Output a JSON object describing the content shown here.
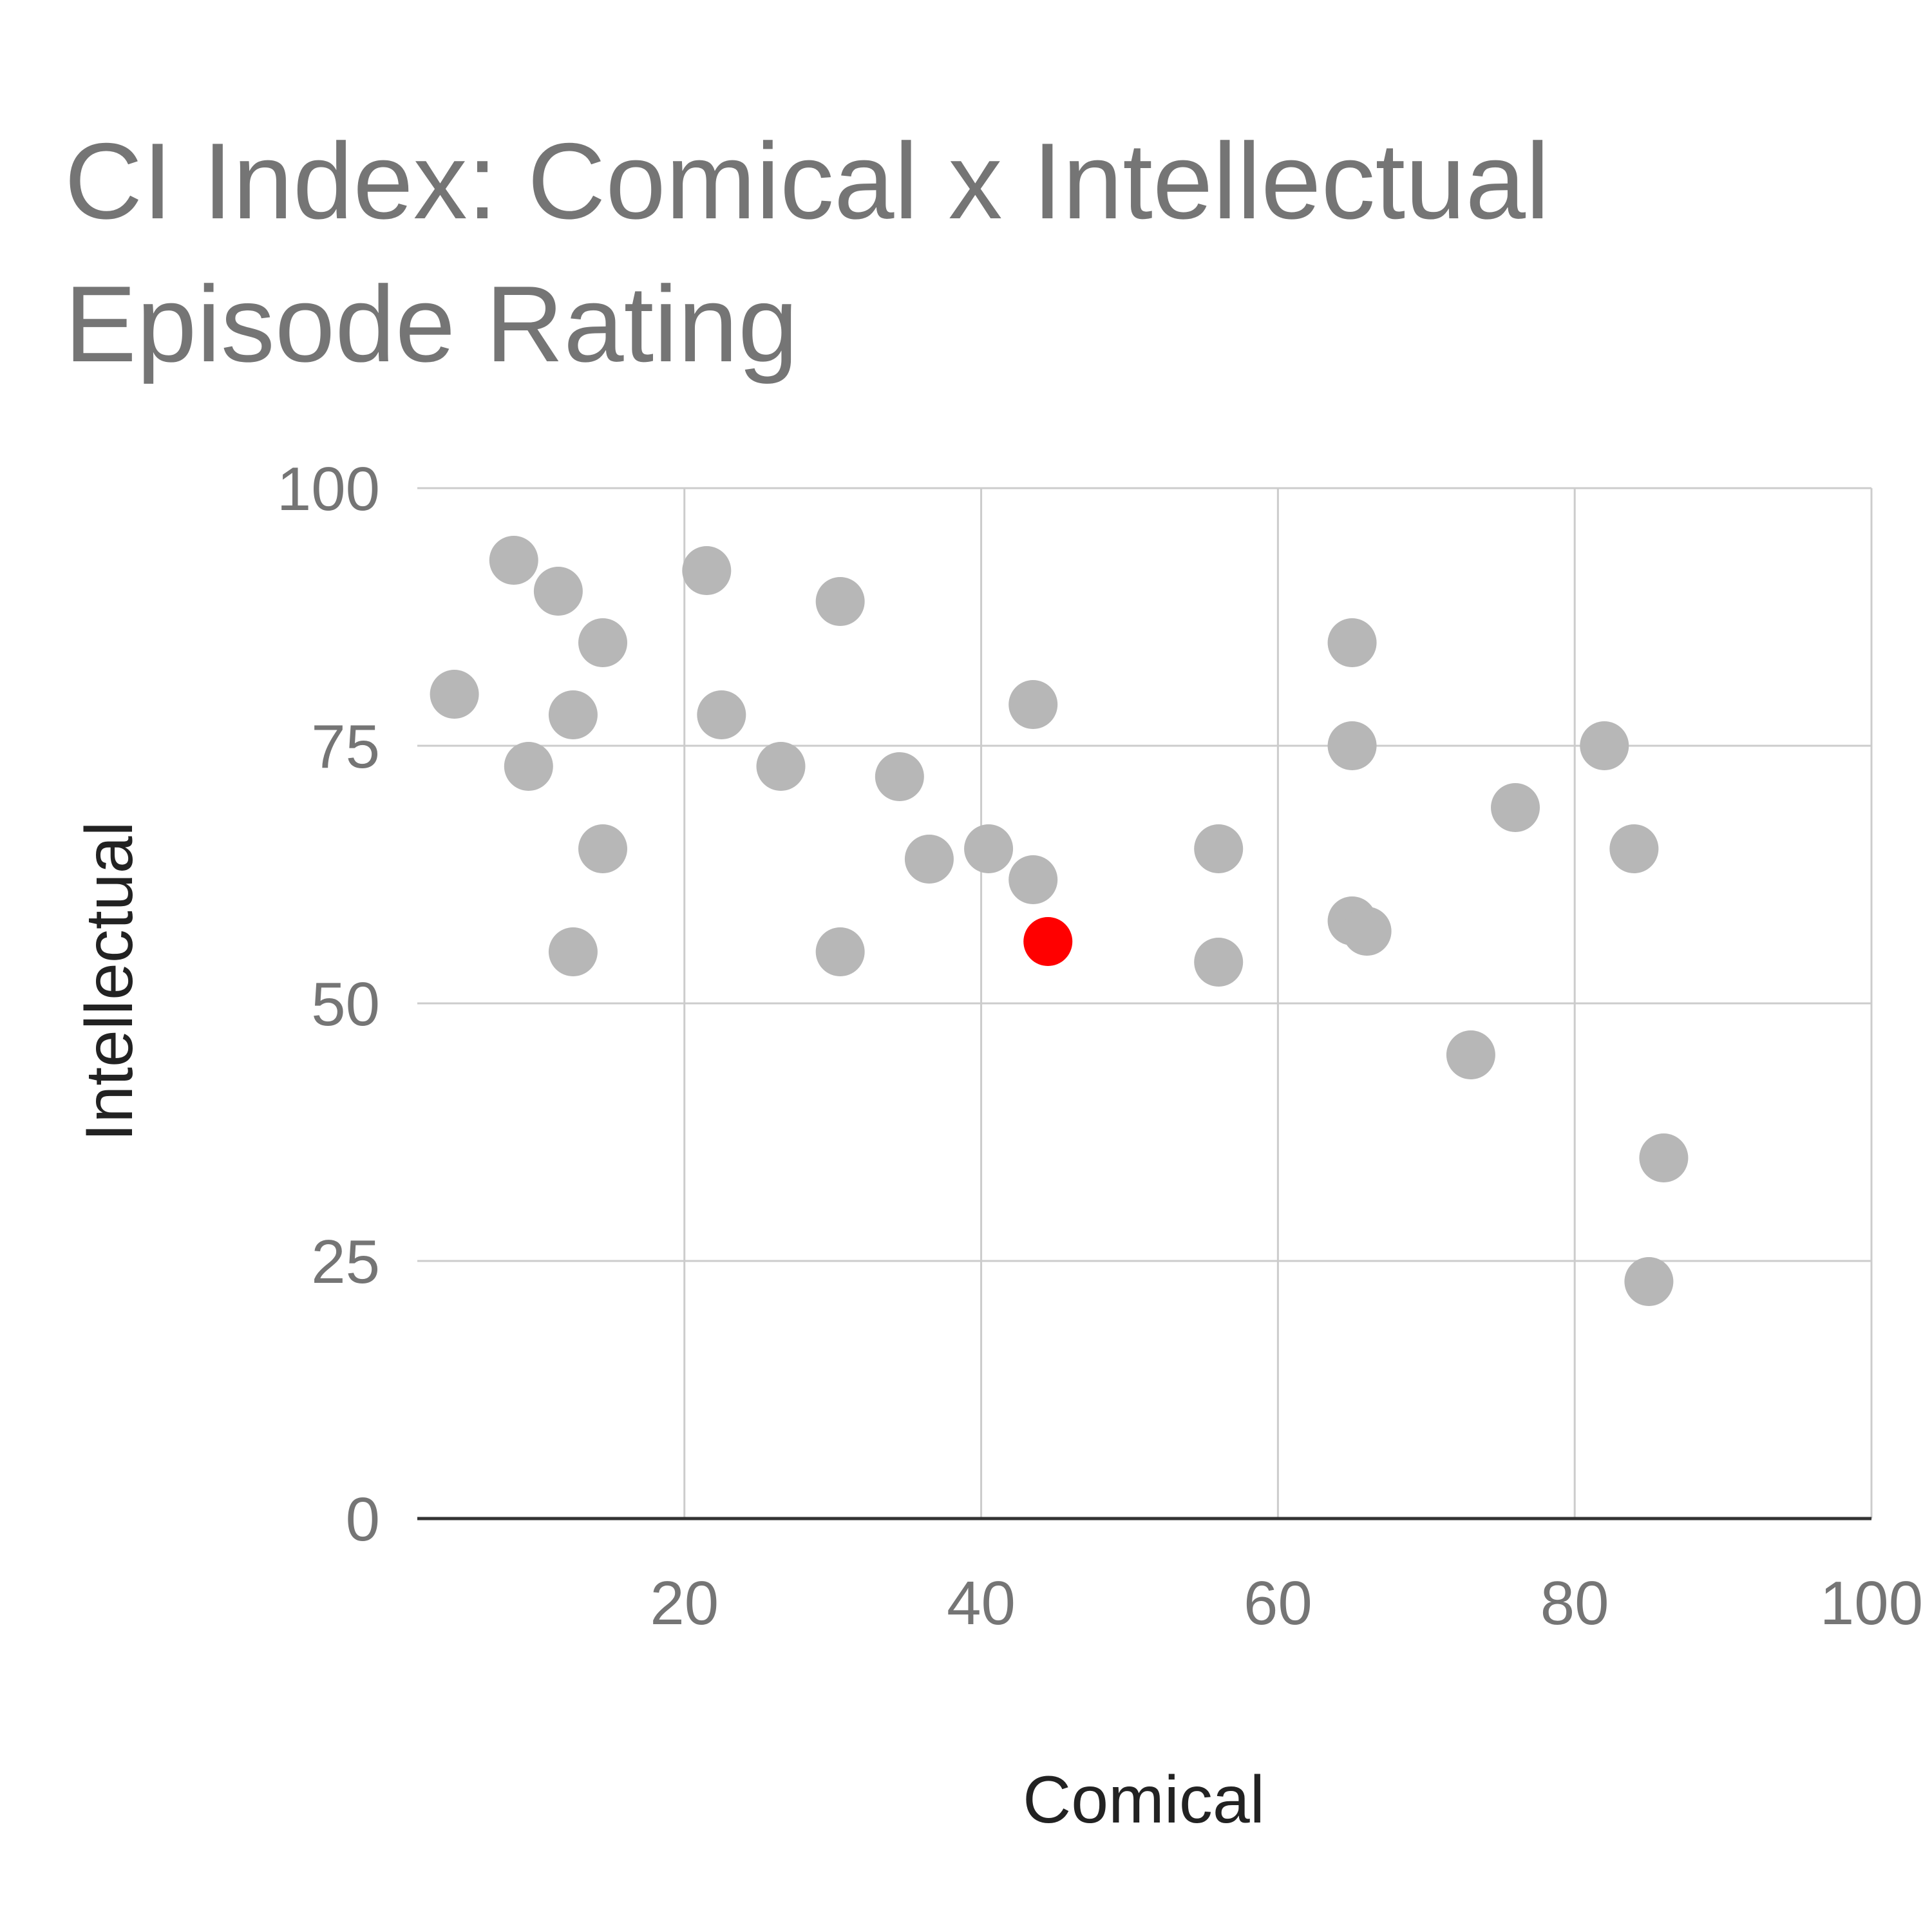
{
  "chart_data": {
    "type": "scatter",
    "title_lines": [
      "CI Index: Comical x Intellectual",
      "Episode Rating"
    ],
    "xlabel": "Comical",
    "ylabel": "Intellectual",
    "xlim": [
      2,
      100
    ],
    "ylim": [
      0,
      100
    ],
    "x_ticks": [
      20,
      40,
      60,
      80,
      100
    ],
    "y_ticks": [
      0,
      25,
      50,
      75,
      100
    ],
    "grid": true,
    "legend": "none",
    "colors": {
      "point": "#b7b7b7",
      "highlight": "#ff0000",
      "grid": "#cccccc",
      "baseline": "#333333"
    },
    "points": [
      {
        "x": 4.5,
        "y": 80
      },
      {
        "x": 8.5,
        "y": 93
      },
      {
        "x": 9.5,
        "y": 73
      },
      {
        "x": 11.5,
        "y": 90
      },
      {
        "x": 12.5,
        "y": 78
      },
      {
        "x": 12.5,
        "y": 55
      },
      {
        "x": 14.5,
        "y": 85
      },
      {
        "x": 14.5,
        "y": 65
      },
      {
        "x": 21.5,
        "y": 92
      },
      {
        "x": 22.5,
        "y": 78
      },
      {
        "x": 26.5,
        "y": 73
      },
      {
        "x": 30.5,
        "y": 89
      },
      {
        "x": 30.5,
        "y": 55
      },
      {
        "x": 34.5,
        "y": 72
      },
      {
        "x": 36.5,
        "y": 64
      },
      {
        "x": 40.5,
        "y": 65
      },
      {
        "x": 43.5,
        "y": 79
      },
      {
        "x": 43.5,
        "y": 62
      },
      {
        "x": 56,
        "y": 65
      },
      {
        "x": 56,
        "y": 54
      },
      {
        "x": 65,
        "y": 85
      },
      {
        "x": 65,
        "y": 75
      },
      {
        "x": 65,
        "y": 58
      },
      {
        "x": 66,
        "y": 57
      },
      {
        "x": 73,
        "y": 45
      },
      {
        "x": 76,
        "y": 69
      },
      {
        "x": 82,
        "y": 75
      },
      {
        "x": 84,
        "y": 65
      },
      {
        "x": 86,
        "y": 35
      },
      {
        "x": 85,
        "y": 23
      }
    ],
    "highlight_points": [
      {
        "x": 44.5,
        "y": 56
      }
    ]
  }
}
